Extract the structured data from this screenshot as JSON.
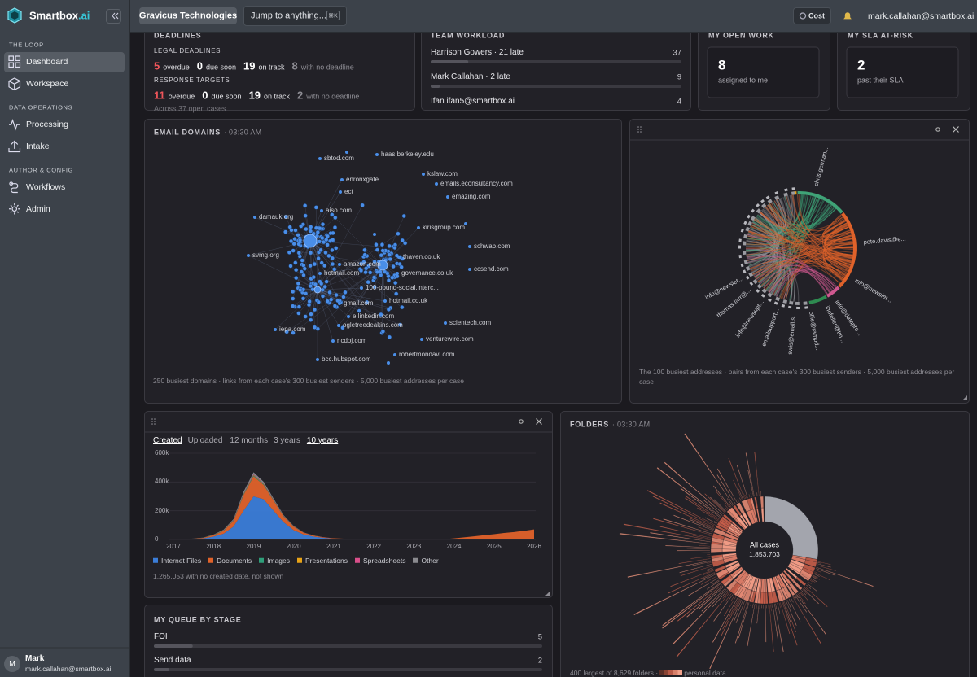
{
  "sidebar": {
    "brand": "Smartbox",
    "brand_suffix": ".ai",
    "sections": [
      {
        "title": "THE LOOP",
        "items": [
          "Dashboard",
          "Workspace"
        ]
      },
      {
        "title": "DATA OPERATIONS",
        "items": [
          "Processing",
          "Intake"
        ]
      },
      {
        "title": "AUTHOR & CONFIG",
        "items": [
          "Workflows",
          "Admin"
        ]
      }
    ],
    "user": {
      "initial": "M",
      "name": "Mark",
      "email": "mark.callahan@smartbox.ai"
    }
  },
  "topbar": {
    "org": "Gravicus Technologies",
    "search": "Jump to anything...",
    "shortcut": "⌘K",
    "cost": "Cost",
    "user": "mark.callahan@smartbox.ai"
  },
  "deadlines": {
    "title": "DEADLINES",
    "groups": [
      {
        "title": "LEGAL DEADLINES",
        "counts": [
          {
            "value": 5,
            "label": "overdue",
            "color": "#f0555a"
          },
          {
            "value": 0,
            "label": "due soon",
            "color": "#ffffff"
          },
          {
            "value": 19,
            "label": "on track",
            "color": "#ffffff"
          },
          {
            "value": 8,
            "label": "with no deadline",
            "color": "#8d8c93"
          }
        ]
      },
      {
        "title": "RESPONSE TARGETS",
        "counts": [
          {
            "value": 11,
            "label": "overdue",
            "color": "#f0555a"
          },
          {
            "value": 0,
            "label": "due soon",
            "color": "#ffffff"
          },
          {
            "value": 19,
            "label": "on track",
            "color": "#ffffff"
          },
          {
            "value": 2,
            "label": "with no deadline",
            "color": "#8d8c93"
          }
        ]
      }
    ],
    "footer": "Across 37 open cases"
  },
  "team_workload": {
    "title": "TEAM WORKLOAD",
    "rows": [
      {
        "name": "Harrison Gowers · 21 late",
        "value": 37
      },
      {
        "name": "Mark Callahan · 2 late",
        "value": 9
      },
      {
        "name": "Ifan ifan5@smartbox.ai",
        "value": 4
      }
    ]
  },
  "open_work": {
    "title": "MY OPEN WORK",
    "value": 8,
    "caption": "assigned to me"
  },
  "sla": {
    "title": "MY SLA AT-RISK",
    "value": 2,
    "caption": "past their SLA"
  },
  "email_domains": {
    "title": "EMAIL DOMAINS",
    "time": "· 03:30 AM",
    "nodes": [
      "sbtod.com",
      "haas.berkeley.edu",
      "kslaw.com",
      "enronxgate",
      "emails.econsultancy.com",
      "ect",
      "emazing.com",
      "aiso.com",
      "damauk.org",
      "kirisgroup.com",
      "schwab.com",
      "svmg.org",
      "amazon.com",
      "thaven.co.uk",
      "governance.co.uk",
      "ccsend.com",
      "hotmail.com",
      "100-pound-social.interc...",
      "hotmail.co.uk",
      "gmail.com",
      "e.linkedin.com",
      "ogletreedeakins.com",
      "scientech.com",
      "iepa.com",
      "venturewire.com",
      "ncdoj.com",
      "robertmondavi.com",
      "bcc.hubspot.com"
    ],
    "footer": "250 busiest domains · links from each case's 300 busiest senders · 5,000 busiest addresses per case"
  },
  "addresses": {
    "labels": [
      "chris.german...",
      "pete.davis@e...",
      "info@newslet...",
      "info@datapro...",
      "ihofeller@tm...",
      "ollie@rampd...",
      "swis@email.s...",
      "emailsupport...",
      "info@newsupt...",
      "thomas.farr@...",
      "info@newslet..."
    ],
    "footer": "The 100 busiest addresses · pairs from each case's 300 busiest senders · 5,000 busiest addresses per case"
  },
  "created": {
    "tabs": [
      "Created",
      "Uploaded",
      "12 months",
      "3 years",
      "10 years"
    ],
    "footer": "1,265,053 with no created date, not shown"
  },
  "chart_data": {
    "type": "area",
    "stacked": true,
    "x": [
      2017,
      2017.25,
      2017.5,
      2017.75,
      2018,
      2018.25,
      2018.5,
      2018.75,
      2019,
      2019.25,
      2019.5,
      2019.75,
      2020,
      2020.25,
      2020.5,
      2020.75,
      2021,
      2021.25,
      2021.5,
      2021.75,
      2022,
      2022.25,
      2022.5,
      2022.75,
      2023,
      2023.25,
      2023.5,
      2023.75,
      2024,
      2024.25,
      2024.5,
      2024.75,
      2025,
      2025.25,
      2025.5,
      2025.75,
      2026
    ],
    "xlim": [
      2017,
      2026
    ],
    "xticks": [
      2017,
      2018,
      2019,
      2020,
      2021,
      2022,
      2023,
      2024,
      2025,
      2026
    ],
    "ylim": [
      0,
      600000
    ],
    "yticks": [
      0,
      {
        "value": 200000,
        "label": "200k"
      },
      {
        "value": 400000,
        "label": "400k"
      },
      {
        "value": 600000,
        "label": "600k"
      }
    ],
    "grid": true,
    "series": [
      {
        "name": "Internet Files",
        "color": "#3b7dd8",
        "values": [
          1000,
          2000,
          4000,
          8000,
          20000,
          40000,
          90000,
          200000,
          300000,
          280000,
          200000,
          120000,
          65000,
          35000,
          20000,
          11000,
          6000,
          4000,
          2500,
          1500,
          800,
          300,
          0,
          0,
          0,
          0,
          0,
          0,
          0,
          0,
          0,
          0,
          0,
          0,
          0,
          0,
          0
        ]
      },
      {
        "name": "Documents",
        "color": "#e0622a",
        "values": [
          500,
          1000,
          2000,
          4000,
          10000,
          20000,
          40000,
          110000,
          140000,
          100000,
          70000,
          40000,
          25000,
          12000,
          7000,
          4000,
          2500,
          1500,
          1000,
          600,
          400,
          200,
          0,
          0,
          0,
          0,
          0,
          2000,
          8000,
          15000,
          22000,
          30000,
          37000,
          45000,
          52000,
          60000,
          70000
        ]
      },
      {
        "name": "Images",
        "color": "#2f9e7a",
        "values": [
          0,
          0,
          0,
          500,
          1000,
          2000,
          3000,
          5000,
          6000,
          5000,
          3000,
          2000,
          1000,
          500,
          300,
          200,
          100,
          0,
          0,
          0,
          0,
          0,
          0,
          0,
          0,
          0,
          0,
          0,
          0,
          0,
          0,
          0,
          0,
          0,
          0,
          0,
          0
        ]
      },
      {
        "name": "Presentations",
        "color": "#e8a317",
        "values": [
          0,
          0,
          0,
          0,
          500,
          1000,
          1500,
          2000,
          2500,
          2000,
          1500,
          1000,
          500,
          200,
          100,
          0,
          0,
          0,
          0,
          0,
          0,
          0,
          0,
          0,
          0,
          0,
          0,
          0,
          0,
          0,
          0,
          0,
          0,
          0,
          0,
          0,
          0
        ]
      },
      {
        "name": "Spreadsheets",
        "color": "#d94f8a",
        "values": [
          0,
          0,
          0,
          0,
          500,
          1000,
          2000,
          3000,
          4000,
          3000,
          2000,
          1000,
          500,
          300,
          200,
          100,
          0,
          0,
          0,
          0,
          0,
          0,
          0,
          0,
          0,
          0,
          0,
          0,
          0,
          0,
          0,
          0,
          0,
          0,
          0,
          0,
          0
        ]
      },
      {
        "name": "Other",
        "color": "#8a8a8f",
        "values": [
          0,
          0,
          500,
          1000,
          2000,
          4000,
          6000,
          12000,
          15000,
          12000,
          8000,
          5000,
          3000,
          1500,
          800,
          400,
          200,
          100,
          0,
          0,
          0,
          0,
          0,
          0,
          0,
          0,
          0,
          0,
          0,
          0,
          0,
          0,
          0,
          0,
          0,
          0,
          0
        ]
      }
    ]
  },
  "folders": {
    "title": "FOLDERS",
    "time": "· 03:30 AM",
    "center_label": "All cases",
    "center_value": "1,853,703",
    "footer": "400 largest of 8,629 folders ·",
    "legend": "personal data"
  },
  "queue": {
    "title": "MY QUEUE BY STAGE",
    "rows": [
      {
        "name": "FOI",
        "value": 5
      },
      {
        "name": "Send data",
        "value": 2
      }
    ]
  }
}
